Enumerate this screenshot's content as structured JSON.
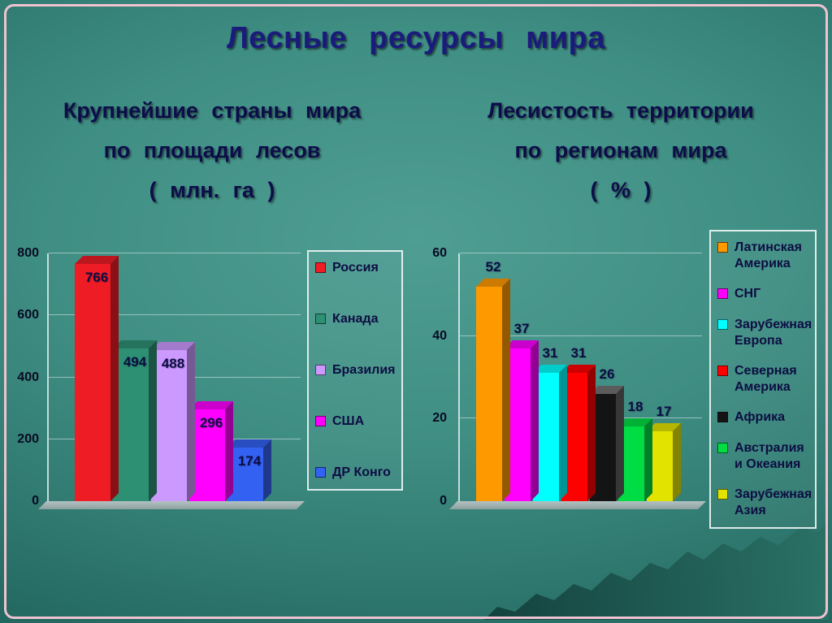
{
  "slide": {
    "title": "Лесные ресурсы мира"
  },
  "chart_data": [
    {
      "type": "bar",
      "title": "Крупнейшие страны мира по площади лесов ( млн. га )",
      "title_lines": [
        "Крупнейшие страны мира",
        "по площади лесов",
        "( млн. га )"
      ],
      "categories": [
        "Россия",
        "Канада",
        "Бразилия",
        "США",
        "ДР Конго"
      ],
      "values": [
        766,
        494,
        488,
        296,
        174
      ],
      "colors": [
        "#ee1c25",
        "#2e9073",
        "#cc99ff",
        "#ff00ff",
        "#3361f2"
      ],
      "xlabel": "",
      "ylabel": "",
      "ylim": [
        0,
        800
      ],
      "ytick_step": 200,
      "grid": true,
      "legend_position": "right",
      "value_labels": "inside-top"
    },
    {
      "type": "bar",
      "title": "Лесистость территории по регионам мира ( % )",
      "title_lines": [
        "Лесистость территории",
        "по регионам мира",
        "( % )"
      ],
      "categories": [
        "Латинская Америка",
        "СНГ",
        "Зарубежная Европа",
        "Северная Америка",
        "Африка",
        "Австралия и Океания",
        "Зарубежная Азия"
      ],
      "values": [
        52,
        37,
        31,
        31,
        26,
        18,
        17
      ],
      "colors": [
        "#ff9900",
        "#ff00ff",
        "#00ffff",
        "#ff0000",
        "#141414",
        "#00dd44",
        "#e3e300"
      ],
      "xlabel": "",
      "ylabel": "",
      "ylim": [
        0,
        60
      ],
      "ytick_step": 20,
      "grid": true,
      "legend_position": "right",
      "value_labels": "above"
    }
  ],
  "theme": {
    "border_color": "#efc3d1",
    "title_color": "#1b1b7c",
    "subtitle_color": "#0d0d4a",
    "background_teal": "#3f8e83",
    "mountain_teal": "#123f3c"
  }
}
